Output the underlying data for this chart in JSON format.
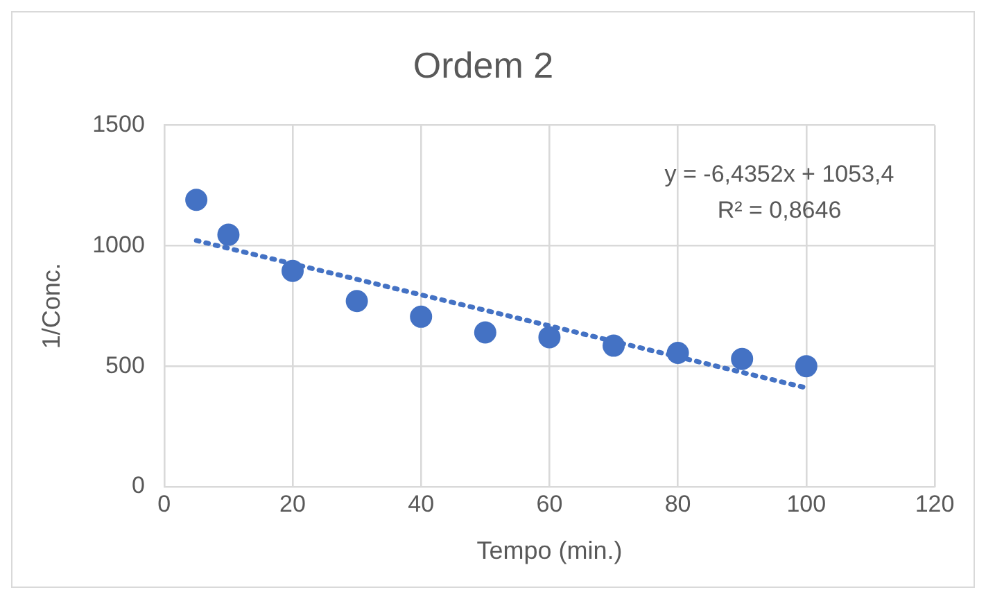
{
  "chart_data": {
    "type": "scatter",
    "title": "Ordem 2",
    "xlabel": "Tempo (min.)",
    "ylabel": "1/Conc.",
    "xlim": [
      0,
      120
    ],
    "xticks": [
      0,
      20,
      40,
      60,
      80,
      100,
      120
    ],
    "ylim": [
      0,
      1500
    ],
    "yticks": [
      0,
      500,
      1000,
      1500
    ],
    "grid": true,
    "legend": false,
    "marker": "circle",
    "series": [
      {
        "color": "#4472c4",
        "x": [
          5,
          10,
          20,
          30,
          40,
          50,
          60,
          70,
          80,
          90,
          100
        ],
        "values": [
          1190,
          1045,
          895,
          770,
          705,
          640,
          620,
          585,
          555,
          530,
          500
        ]
      },
      {
        "type": "line",
        "color": "#4472c4",
        "line_style": "dotted",
        "marker": "none",
        "x": [
          5,
          100
        ],
        "values": [
          1021,
          410
        ]
      }
    ],
    "annotations": [
      "y = -6,4352x + 1053,4",
      "R² = 0,8646"
    ]
  }
}
